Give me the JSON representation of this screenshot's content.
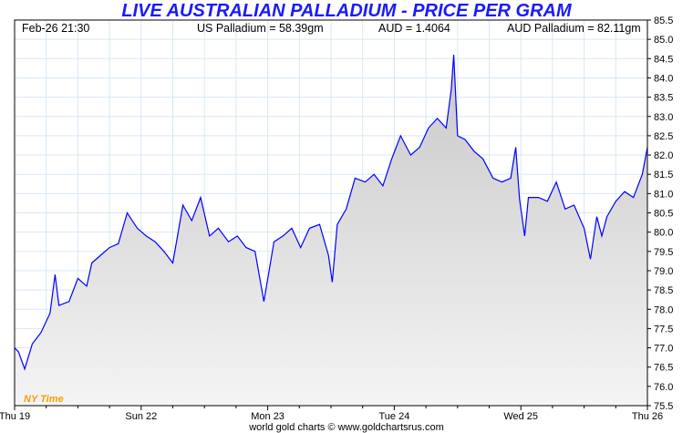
{
  "title": "LIVE AUSTRALIAN PALLADIUM - PRICE PER GRAM",
  "header": {
    "datetime": "Feb-26  21:30",
    "us_price": "US Palladium = 58.39gm",
    "fx": "AUD = 1.4064",
    "aud_price": "AUD Palladium = 82.11gm"
  },
  "timezone_label": "NY Time",
  "footer": "world gold charts © www.goldchartsrus.com",
  "colors": {
    "line": "#0000ff",
    "title": "#1a1aff",
    "grid": "#d8e8f4",
    "tz": "#f5a000"
  },
  "chart_data": {
    "type": "area",
    "title": "LIVE AUSTRALIAN PALLADIUM - PRICE PER GRAM",
    "xlabel": "",
    "ylabel": "",
    "ylim": [
      75.5,
      85.5
    ],
    "yticks": [
      "75.5",
      "76.0",
      "76.5",
      "77.0",
      "77.5",
      "78.0",
      "78.5",
      "79.0",
      "79.5",
      "80.0",
      "80.5",
      "81.0",
      "81.5",
      "82.0",
      "82.5",
      "83.0",
      "83.5",
      "84.0",
      "84.5",
      "85.0",
      "85.5"
    ],
    "xticks": [
      "Thu 19",
      "Sun 22",
      "Mon 23",
      "Tue 24",
      "Wed 25",
      "Thu 26"
    ],
    "xlim": [
      0,
      5
    ],
    "grid": true,
    "x": [
      0,
      0.03,
      0.08,
      0.14,
      0.21,
      0.28,
      0.32,
      0.35,
      0.43,
      0.5,
      0.57,
      0.61,
      0.68,
      0.75,
      0.82,
      0.89,
      0.97,
      1.04,
      1.11,
      1.18,
      1.25,
      1.33,
      1.4,
      1.47,
      1.54,
      1.61,
      1.69,
      1.76,
      1.83,
      1.9,
      1.97,
      2.05,
      2.12,
      2.19,
      2.26,
      2.33,
      2.41,
      2.48,
      2.51,
      2.55,
      2.62,
      2.69,
      2.77,
      2.84,
      2.91,
      2.98,
      3.05,
      3.13,
      3.2,
      3.27,
      3.34,
      3.41,
      3.45,
      3.47,
      3.5,
      3.56,
      3.63,
      3.7,
      3.78,
      3.85,
      3.92,
      3.96,
      3.99,
      4.03,
      4.06,
      4.14,
      4.21,
      4.28,
      4.35,
      4.42,
      4.5,
      4.55,
      4.6,
      4.64,
      4.68,
      4.75,
      4.82,
      4.89,
      4.96,
      5.0
    ],
    "y": [
      77.0,
      76.9,
      76.45,
      77.1,
      77.4,
      77.9,
      78.9,
      78.1,
      78.2,
      78.8,
      78.6,
      79.2,
      79.4,
      79.6,
      79.7,
      80.5,
      80.1,
      79.9,
      79.75,
      79.5,
      79.2,
      80.7,
      80.3,
      80.9,
      79.9,
      80.1,
      79.75,
      79.9,
      79.6,
      79.5,
      78.2,
      79.75,
      79.9,
      80.1,
      79.6,
      80.1,
      80.2,
      79.4,
      78.7,
      80.2,
      80.6,
      81.4,
      81.3,
      81.5,
      81.2,
      81.9,
      82.5,
      82.0,
      82.2,
      82.7,
      82.95,
      82.7,
      83.7,
      84.6,
      82.5,
      82.4,
      82.1,
      81.9,
      81.4,
      81.3,
      81.4,
      82.2,
      80.85,
      79.9,
      80.9,
      80.9,
      80.8,
      81.3,
      80.6,
      80.7,
      80.1,
      79.3,
      80.4,
      79.9,
      80.4,
      80.8,
      81.05,
      80.9,
      81.5,
      82.2
    ]
  }
}
